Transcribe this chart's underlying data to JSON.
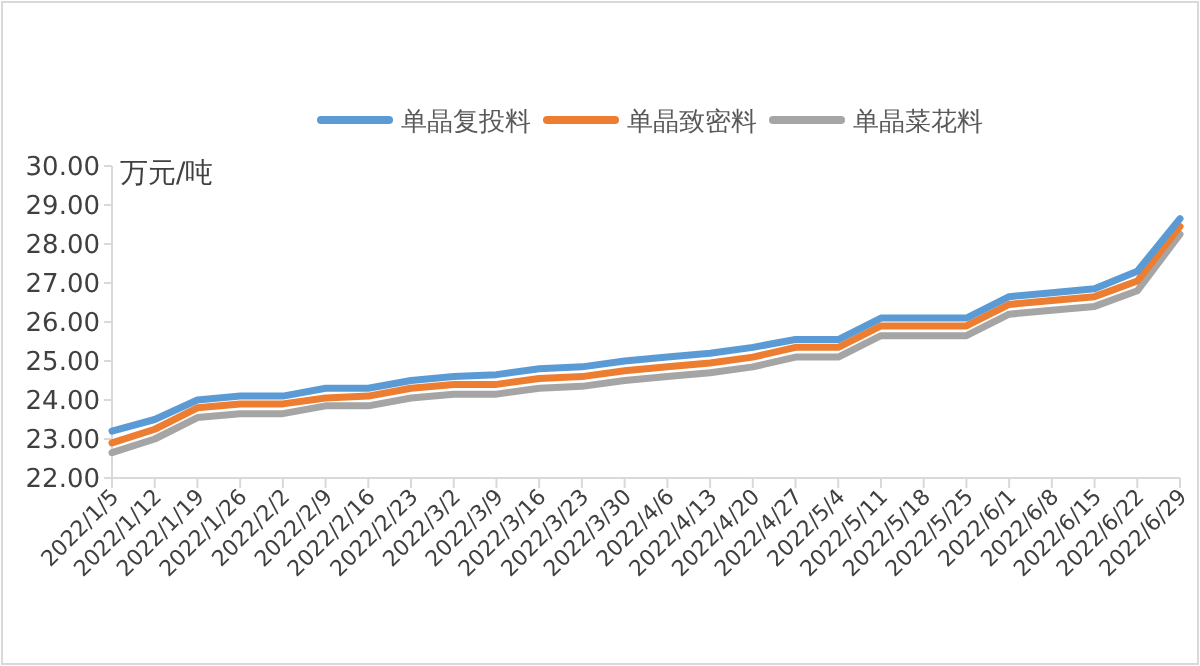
{
  "chart_data": {
    "type": "line",
    "ylabel": "万元/吨",
    "categories": [
      "2022/1/5",
      "2022/1/12",
      "2022/1/19",
      "2022/1/26",
      "2022/2/2",
      "2022/2/9",
      "2022/2/16",
      "2022/2/23",
      "2022/3/2",
      "2022/3/9",
      "2022/3/16",
      "2022/3/23",
      "2022/3/30",
      "2022/4/6",
      "2022/4/13",
      "2022/4/20",
      "2022/4/27",
      "2022/5/4",
      "2022/5/11",
      "2022/5/18",
      "2022/5/25",
      "2022/6/1",
      "2022/6/8",
      "2022/6/15",
      "2022/6/22",
      "2022/6/29"
    ],
    "series": [
      {
        "name": "单晶复投料",
        "color": "#5b9bd5",
        "values": [
          23.2,
          23.5,
          24.0,
          24.1,
          24.1,
          24.3,
          24.3,
          24.5,
          24.6,
          24.65,
          24.8,
          24.85,
          25.0,
          25.1,
          25.2,
          25.35,
          25.55,
          25.55,
          26.1,
          26.1,
          26.1,
          26.65,
          26.75,
          26.85,
          27.3,
          28.65
        ]
      },
      {
        "name": "单晶致密料",
        "color": "#ed7d31",
        "values": [
          22.9,
          23.25,
          23.8,
          23.9,
          23.9,
          24.05,
          24.1,
          24.3,
          24.4,
          24.4,
          24.55,
          24.6,
          24.75,
          24.85,
          24.95,
          25.1,
          25.35,
          25.35,
          25.9,
          25.9,
          25.9,
          26.45,
          26.55,
          26.65,
          27.05,
          28.45
        ]
      },
      {
        "name": "单晶菜花料",
        "color": "#a5a5a5",
        "values": [
          22.65,
          23.0,
          23.55,
          23.65,
          23.65,
          23.85,
          23.85,
          24.05,
          24.15,
          24.15,
          24.3,
          24.35,
          24.5,
          24.6,
          24.7,
          24.85,
          25.1,
          25.1,
          25.65,
          25.65,
          25.65,
          26.2,
          26.3,
          26.4,
          26.8,
          28.25
        ]
      }
    ],
    "ylim": [
      22,
      30
    ],
    "yticks": [
      {
        "value": 22,
        "label": "22.00"
      },
      {
        "value": 23,
        "label": "23.00"
      },
      {
        "value": 24,
        "label": "24.00"
      },
      {
        "value": 25,
        "label": "25.00"
      },
      {
        "value": 26,
        "label": "26.00"
      },
      {
        "value": 27,
        "label": "27.00"
      },
      {
        "value": 28,
        "label": "28.00"
      },
      {
        "value": 29,
        "label": "29.00"
      },
      {
        "value": 30,
        "label": "30.00"
      }
    ],
    "grid": false,
    "legend": "top",
    "marker": "none",
    "line_style": "solid"
  }
}
